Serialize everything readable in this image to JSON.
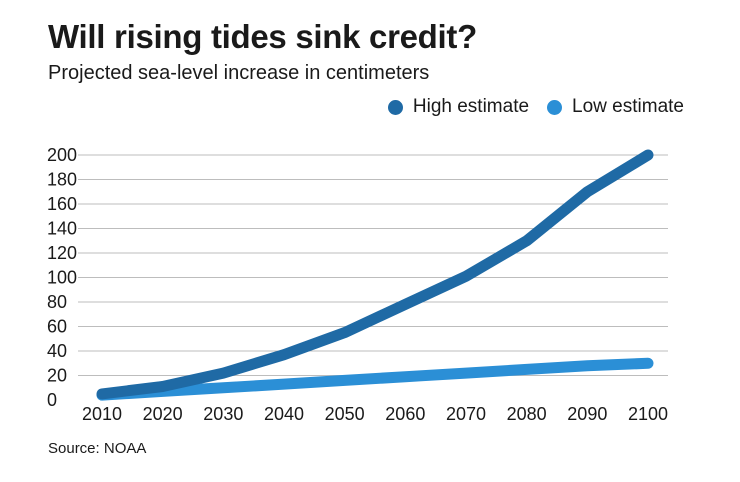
{
  "header": {
    "title": "Will rising tides sink credit?",
    "subtitle": "Projected sea-level increase in centimeters"
  },
  "source": "Source: NOAA",
  "colors": {
    "high": "#1f6aa5",
    "low": "#2b8fd6",
    "grid": "#bdbdbd",
    "text": "#1a1a1a"
  },
  "chart_data": {
    "type": "line",
    "title": "Will rising tides sink credit?",
    "subtitle": "Projected sea-level increase in centimeters",
    "x": [
      2010,
      2020,
      2030,
      2040,
      2050,
      2060,
      2070,
      2080,
      2090,
      2100
    ],
    "ylim": [
      0,
      200
    ],
    "yticks": [
      0,
      20,
      40,
      60,
      80,
      100,
      120,
      140,
      160,
      180,
      200
    ],
    "grid": true,
    "legend_position": "top-right",
    "series": [
      {
        "name": "High estimate",
        "color": "#1f6aa5",
        "values": [
          5,
          11,
          22,
          37,
          55,
          78,
          101,
          130,
          170,
          200
        ]
      },
      {
        "name": "Low estimate",
        "color": "#2b8fd6",
        "values": [
          4,
          7,
          10,
          13,
          16,
          19,
          22,
          25,
          28,
          30
        ]
      }
    ]
  }
}
